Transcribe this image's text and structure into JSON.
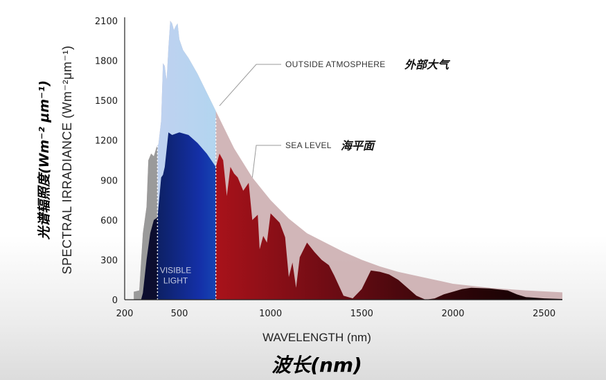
{
  "chart_data": {
    "type": "area",
    "title": "",
    "xlabel": "WAVELENGTH (nm)",
    "xlabel_zh": "波长(nm)",
    "ylabel": "SPECTRAL IRRADIANCE (Wm⁻²μm⁻¹)",
    "ylabel_zh": "光谱辐照度(Wm⁻² μm⁻¹)",
    "xlim": [
      200,
      2600
    ],
    "ylim": [
      0,
      2100
    ],
    "xticks": [
      200,
      500,
      1000,
      1500,
      2000,
      2500
    ],
    "yticks": [
      0,
      300,
      600,
      900,
      1200,
      1500,
      1800,
      2100
    ],
    "grid": false,
    "series": [
      {
        "name": "OUTSIDE ATMOSPHERE",
        "name_zh": "外部大气",
        "color": "#c9a9ab",
        "x": [
          250,
          280,
          300,
          320,
          330,
          345,
          360,
          375,
          385,
          400,
          410,
          420,
          430,
          440,
          450,
          460,
          470,
          480,
          490,
          500,
          520,
          550,
          600,
          650,
          700,
          750,
          800,
          900,
          1000,
          1100,
          1200,
          1300,
          1400,
          1500,
          1600,
          1700,
          1800,
          1900,
          2000,
          2200,
          2400,
          2600
        ],
        "values": [
          60,
          70,
          500,
          700,
          1050,
          1100,
          1080,
          1150,
          1170,
          1350,
          1780,
          1760,
          1650,
          1900,
          2100,
          2080,
          2030,
          2060,
          2080,
          1960,
          1880,
          1820,
          1700,
          1560,
          1420,
          1280,
          1140,
          920,
          750,
          610,
          500,
          430,
          360,
          300,
          250,
          210,
          180,
          150,
          120,
          90,
          70,
          55
        ]
      },
      {
        "name": "SEA LEVEL",
        "name_zh": "海平面",
        "color": "#7a0f14",
        "x": [
          290,
          300,
          320,
          340,
          360,
          380,
          400,
          410,
          420,
          440,
          460,
          480,
          500,
          550,
          600,
          650,
          700,
          720,
          740,
          760,
          780,
          800,
          820,
          850,
          880,
          900,
          930,
          940,
          960,
          980,
          1000,
          1050,
          1080,
          1100,
          1120,
          1140,
          1160,
          1200,
          1240,
          1280,
          1320,
          1350,
          1400,
          1450,
          1500,
          1550,
          1600,
          1650,
          1700,
          1750,
          1800,
          1850,
          1900,
          1950,
          2000,
          2050,
          2100,
          2200,
          2300,
          2350,
          2400,
          2450,
          2500,
          2600
        ],
        "values": [
          0,
          50,
          300,
          500,
          600,
          620,
          920,
          940,
          1000,
          1260,
          1240,
          1250,
          1260,
          1240,
          1180,
          1100,
          1000,
          1100,
          1050,
          780,
          1000,
          950,
          920,
          820,
          880,
          600,
          640,
          380,
          480,
          430,
          650,
          580,
          470,
          170,
          280,
          90,
          320,
          430,
          360,
          300,
          260,
          180,
          30,
          10,
          80,
          220,
          210,
          190,
          150,
          90,
          30,
          0,
          10,
          40,
          60,
          80,
          90,
          85,
          70,
          40,
          20,
          15,
          10,
          5
        ]
      }
    ],
    "annotations": [
      {
        "text": "VISIBLE",
        "text2": "LIGHT",
        "x_from": 380,
        "x_to": 700
      }
    ]
  }
}
